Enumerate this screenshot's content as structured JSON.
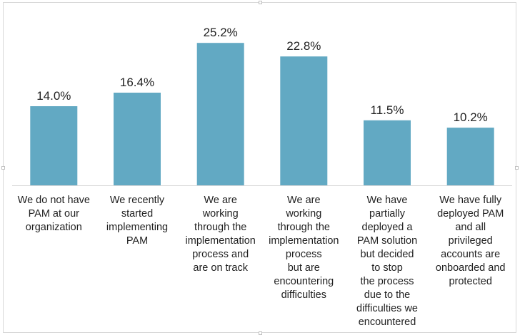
{
  "chart_data": {
    "type": "bar",
    "categories": [
      [
        "We do not have",
        "PAM at our",
        "organization"
      ],
      [
        "We recently",
        "started",
        "implementing",
        "PAM"
      ],
      [
        "We are",
        "working",
        "through the",
        "implementation",
        "process and",
        "are on track"
      ],
      [
        "We are",
        "working",
        "through the",
        "implementation",
        "process",
        "but are",
        "encountering",
        "difficulties"
      ],
      [
        "We have",
        "partially",
        "deployed a",
        "PAM solution",
        "but decided",
        "to stop",
        "the process",
        "due to the",
        "difficulties we",
        "encountered"
      ],
      [
        "We have fully",
        "deployed PAM",
        "and all",
        "privileged",
        "accounts are",
        "onboarded and",
        "protected"
      ]
    ],
    "values": [
      14.0,
      16.4,
      25.2,
      22.8,
      11.5,
      10.2
    ],
    "data_labels": [
      "14.0%",
      "16.4%",
      "25.2%",
      "22.8%",
      "11.5%",
      "10.2%"
    ],
    "bar_color": "#62a9c3",
    "axis_color": "#d9d9d9",
    "ylim": [
      0,
      28.5
    ],
    "grid": false,
    "title": "",
    "xlabel": "",
    "ylabel": ""
  }
}
